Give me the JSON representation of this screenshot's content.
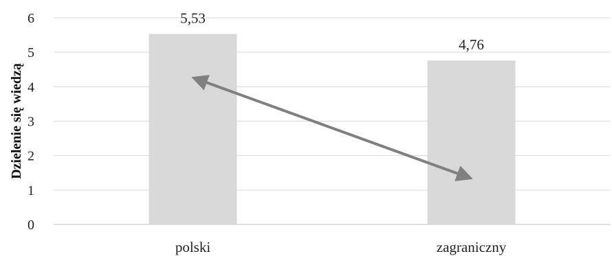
{
  "chart_data": {
    "type": "bar",
    "categories": [
      "polski",
      "zagraniczny"
    ],
    "values": [
      5.53,
      4.76
    ],
    "data_labels": [
      "5,53",
      "4,76"
    ],
    "title": "",
    "xlabel": "",
    "ylabel": "Dzielenie się wiedzą",
    "ylim": [
      0,
      6
    ],
    "yticks": [
      0,
      1,
      2,
      3,
      4,
      5,
      6
    ],
    "grid": true,
    "legend": "none",
    "bar_color": "#d9d9d9",
    "annotation": {
      "type": "double-headed-arrow",
      "from": {
        "category": "polski",
        "y": 4.2
      },
      "to": {
        "category": "zagraniczny",
        "y": 1.4
      },
      "color": "#808080"
    }
  }
}
